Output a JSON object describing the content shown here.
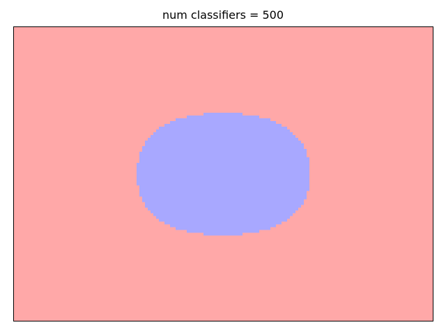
{
  "chart_data": {
    "type": "heatmap",
    "title": "num classifiers = 500",
    "xlabel": "",
    "ylabel": "",
    "x_ticks_visible": false,
    "y_ticks_visible": false,
    "grid": false,
    "legend": "none",
    "description_of_regions": "decision regions of a binary classifier",
    "regions": [
      {
        "class": 0,
        "color": "#ffa8a8",
        "role": "background"
      },
      {
        "class": 1,
        "color": "#a8a8ff",
        "role": "central-ellipse"
      }
    ],
    "class_1_region": {
      "shape": "ellipse",
      "center": [
        0.5,
        0.5
      ],
      "radius_x": 0.205,
      "radius_y": 0.205
    },
    "colors": {
      "class_0": "#ffa8a8",
      "class_1": "#a8a8ff",
      "frame": "#000000"
    }
  }
}
